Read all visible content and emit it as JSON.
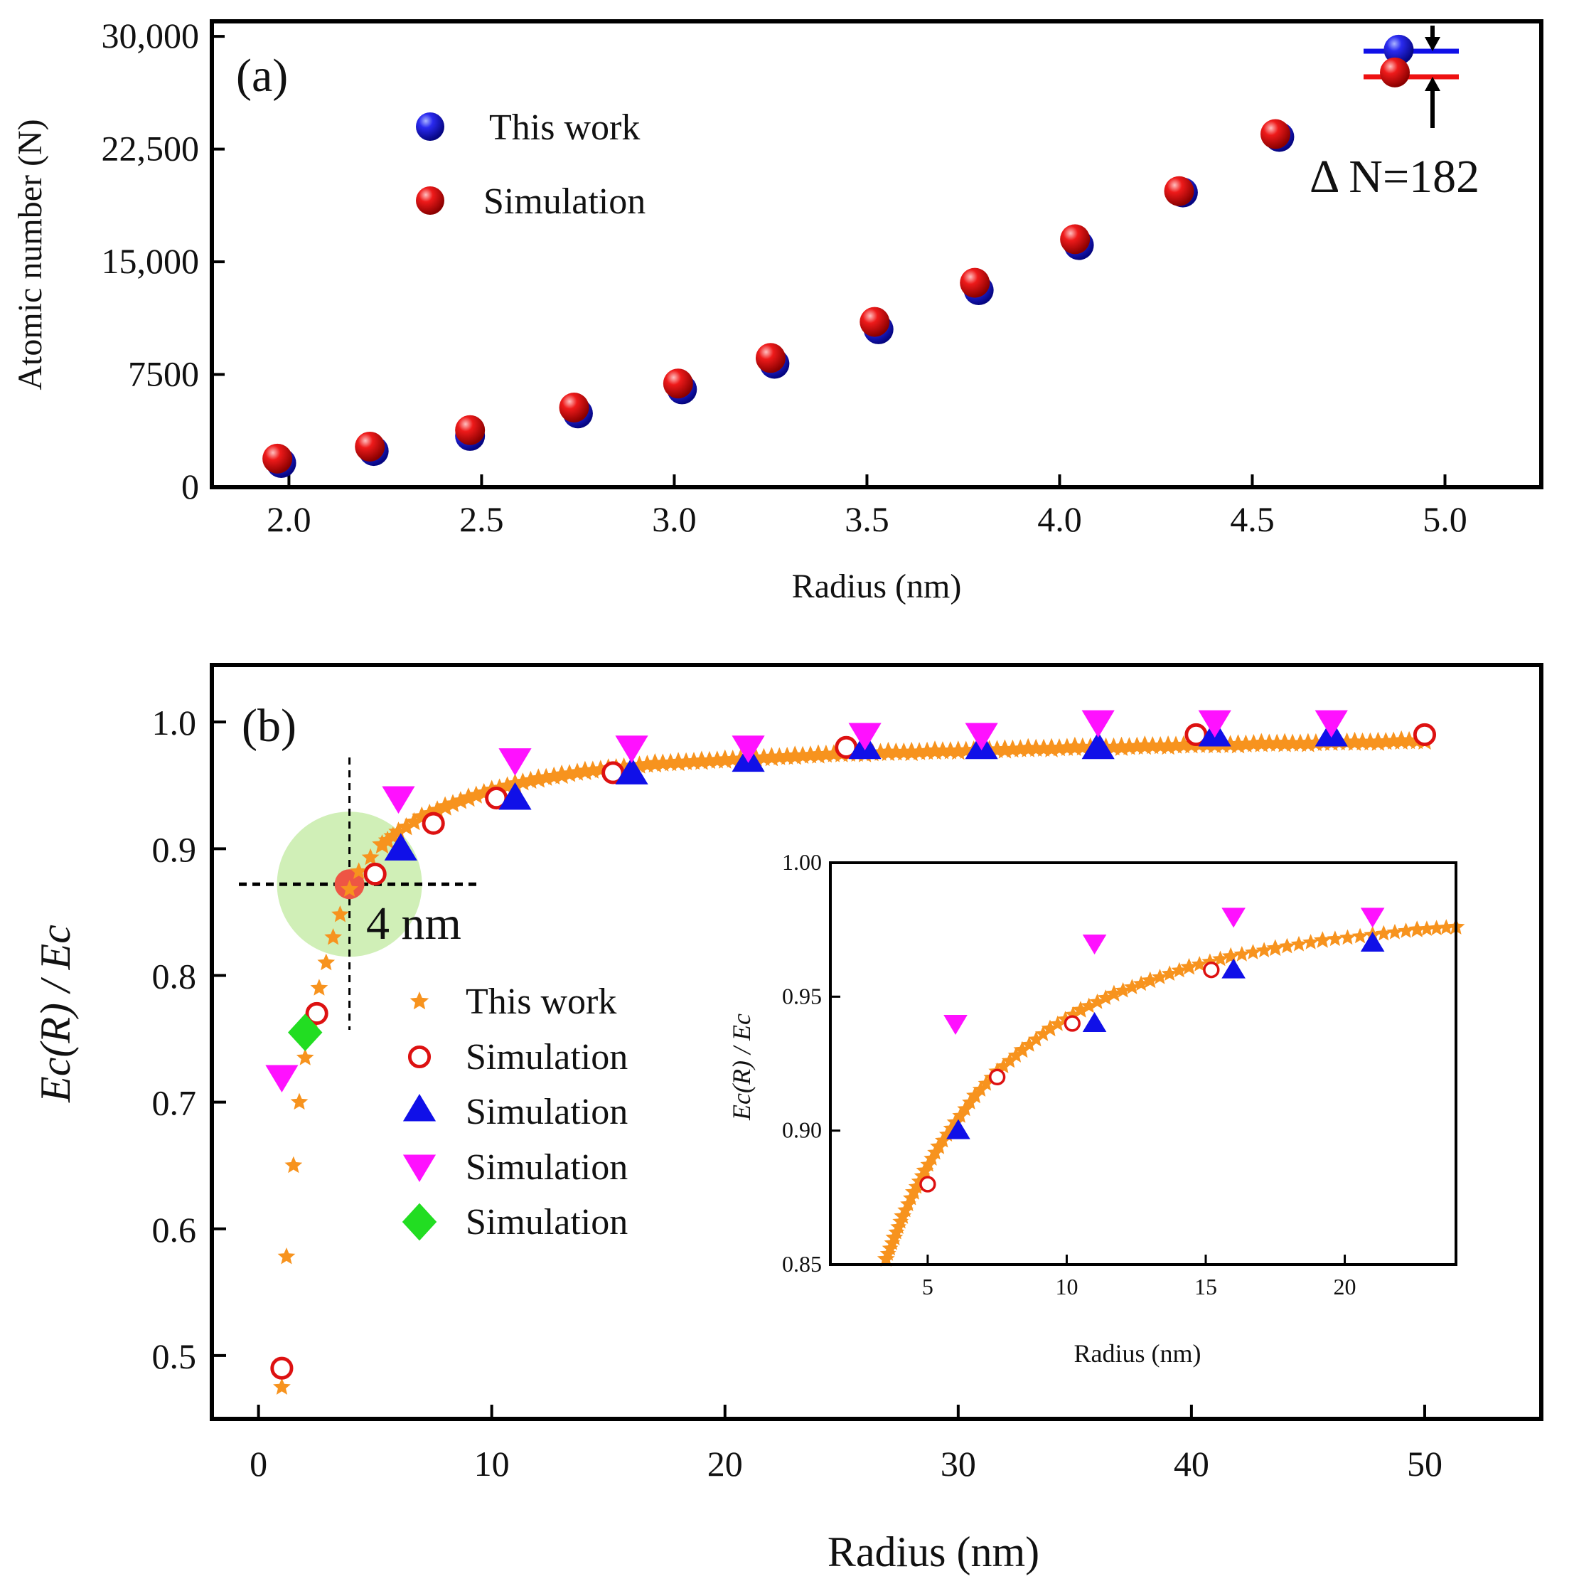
{
  "colors": {
    "blue": "#1010e8",
    "red": "#ee1111",
    "orange": "#f7931e",
    "open_red": "#dd1111",
    "magenta": "#ff11ff",
    "green": "#22dd22",
    "highlight": "#c8ecaa",
    "red_dot": "#ee5544"
  },
  "chart_data": [
    {
      "type": "scatter",
      "panel_label": "(a)",
      "xlabel": "Radius (nm)",
      "ylabel": "Atomic number (N)",
      "xlim": [
        1.8,
        5.25
      ],
      "ylim": [
        0,
        31000
      ],
      "xticks": [
        "2.0",
        "2.5",
        "3.0",
        "3.5",
        "4.0",
        "4.5",
        "5.0"
      ],
      "xtick_values": [
        2.0,
        2.5,
        3.0,
        3.5,
        4.0,
        4.5,
        5.0
      ],
      "yticks": [
        "0",
        "7500",
        "15,000",
        "22,500",
        "30,000"
      ],
      "ytick_values": [
        0,
        7500,
        15000,
        22500,
        30000
      ],
      "annotation": "Δ N=182",
      "series": [
        {
          "name": "This work",
          "marker": "sphere-blue",
          "x": [
            1.98,
            2.22,
            2.47,
            2.75,
            3.02,
            3.26,
            3.53,
            3.79,
            4.05,
            4.32,
            4.57,
            4.88
          ],
          "y": [
            1800,
            2600,
            3600,
            5100,
            6700,
            8400,
            10700,
            13300,
            16300,
            19800,
            23500,
            29300
          ]
        },
        {
          "name": "Simulation",
          "marker": "sphere-red",
          "x": [
            1.97,
            2.21,
            2.47,
            2.74,
            3.01,
            3.25,
            3.52,
            3.78,
            4.04,
            4.31,
            4.56,
            4.87
          ],
          "y": [
            1900,
            2700,
            3800,
            5300,
            6900,
            8600,
            11000,
            13600,
            16500,
            19700,
            23500,
            27600
          ]
        }
      ]
    },
    {
      "type": "scatter",
      "panel_label": "(b)",
      "xlabel": "Radius (nm)",
      "ylabel": "Ec(R) / Ec",
      "xlim": [
        -2,
        55
      ],
      "ylim": [
        0.45,
        1.045
      ],
      "xticks": [
        "0",
        "10",
        "20",
        "30",
        "40",
        "50"
      ],
      "xtick_values": [
        0,
        10,
        20,
        30,
        40,
        50
      ],
      "yticks": [
        "0.5",
        "0.6",
        "0.7",
        "0.8",
        "0.9",
        "1.0"
      ],
      "ytick_values": [
        0.5,
        0.6,
        0.7,
        0.8,
        0.9,
        1.0
      ],
      "annotation": "4 nm",
      "highlight_point": {
        "x": 3.9,
        "y": 0.872
      },
      "series": [
        {
          "name": "This work",
          "marker": "star-orange",
          "x": [
            1.0,
            1.2,
            1.5,
            1.75,
            2.0,
            2.3,
            2.6,
            2.9,
            3.2,
            3.5,
            3.9,
            4.3,
            4.8,
            5.3,
            6,
            7,
            8,
            9,
            10,
            11,
            12,
            13,
            14,
            15,
            16,
            17,
            18,
            19,
            20,
            21,
            22,
            23,
            24,
            25,
            26,
            27,
            28,
            29,
            30,
            31,
            32,
            33,
            34,
            35,
            36,
            37,
            38,
            39,
            40,
            41,
            42,
            43,
            44,
            45,
            46,
            47,
            48,
            49,
            50
          ],
          "y": [
            0.475,
            0.578,
            0.65,
            0.7,
            0.735,
            0.765,
            0.79,
            0.81,
            0.83,
            0.848,
            0.868,
            0.882,
            0.893,
            0.903,
            0.913,
            0.925,
            0.933,
            0.94,
            0.946,
            0.951,
            0.955,
            0.958,
            0.961,
            0.963,
            0.965,
            0.967,
            0.968,
            0.969,
            0.97,
            0.971,
            0.972,
            0.973,
            0.974,
            0.975,
            0.975,
            0.976,
            0.976,
            0.977,
            0.977,
            0.978,
            0.978,
            0.979,
            0.979,
            0.98,
            0.98,
            0.98,
            0.981,
            0.981,
            0.982,
            0.982,
            0.982,
            0.983,
            0.983,
            0.983,
            0.984,
            0.984,
            0.984,
            0.985,
            0.985
          ]
        },
        {
          "name": "Simulation",
          "marker": "circle-open-red",
          "x": [
            1.0,
            2.5,
            5.0,
            7.5,
            10.2,
            15.2,
            25.2,
            40.2,
            50.0
          ],
          "y": [
            0.49,
            0.77,
            0.88,
            0.92,
            0.94,
            0.96,
            0.98,
            0.99,
            0.99
          ]
        },
        {
          "name": "Simulation",
          "marker": "triangle-up-blue",
          "x": [
            6.1,
            11.0,
            16.0,
            21.0,
            26.0,
            31.0,
            36.0,
            41.0,
            46.0
          ],
          "y": [
            0.9,
            0.94,
            0.96,
            0.97,
            0.98,
            0.98,
            0.98,
            0.99,
            0.99
          ]
        },
        {
          "name": "Simulation",
          "marker": "triangle-down-magenta",
          "x": [
            1.0,
            6.0,
            11.0,
            16.0,
            21.0,
            26.0,
            31.0,
            36.0,
            41.0,
            46.0
          ],
          "y": [
            0.72,
            0.94,
            0.97,
            0.98,
            0.98,
            0.99,
            0.99,
            1.0,
            1.0,
            1.0
          ]
        },
        {
          "name": "Simulation",
          "marker": "diamond-green",
          "x": [
            2.0
          ],
          "y": [
            0.755
          ]
        }
      ],
      "inset": {
        "type": "scatter",
        "xlabel": "Radius (nm)",
        "ylabel": "Ec(R) / Ec",
        "xlim": [
          1.5,
          24
        ],
        "ylim": [
          0.85,
          1.0
        ],
        "xticks": [
          "5",
          "10",
          "15",
          "20"
        ],
        "xtick_values": [
          5,
          10,
          15,
          20
        ],
        "yticks": [
          "0.85",
          "0.90",
          "0.95",
          "1.00"
        ],
        "ytick_values": [
          0.85,
          0.9,
          0.95,
          1.0
        ],
        "series": [
          {
            "name": "This work",
            "marker": "star-orange",
            "x": [
              3.5,
              3.8,
              4.1,
              4.5,
              4.9,
              5.4,
              6.0,
              6.7,
              7.5,
              8.4,
              9.4,
              10.5,
              11.7,
              13.0,
              14.4,
              15.9,
              17.5,
              19.2,
              21.0,
              22.6,
              24.0
            ],
            "y": [
              0.852,
              0.86,
              0.868,
              0.877,
              0.885,
              0.894,
              0.903,
              0.913,
              0.922,
              0.93,
              0.938,
              0.945,
              0.951,
              0.956,
              0.961,
              0.965,
              0.968,
              0.971,
              0.973,
              0.975,
              0.976
            ]
          },
          {
            "name": "Simulation",
            "marker": "circle-open-red",
            "x": [
              5.0,
              7.5,
              10.2,
              15.2
            ],
            "y": [
              0.88,
              0.92,
              0.94,
              0.96
            ]
          },
          {
            "name": "Simulation",
            "marker": "triangle-up-blue",
            "x": [
              6.1,
              11.0,
              16.0,
              21.0
            ],
            "y": [
              0.9,
              0.94,
              0.96,
              0.97
            ]
          },
          {
            "name": "Simulation",
            "marker": "triangle-down-magenta",
            "x": [
              6.0,
              11.0,
              16.0,
              21.0
            ],
            "y": [
              0.94,
              0.97,
              0.98,
              0.98
            ]
          }
        ]
      }
    }
  ]
}
